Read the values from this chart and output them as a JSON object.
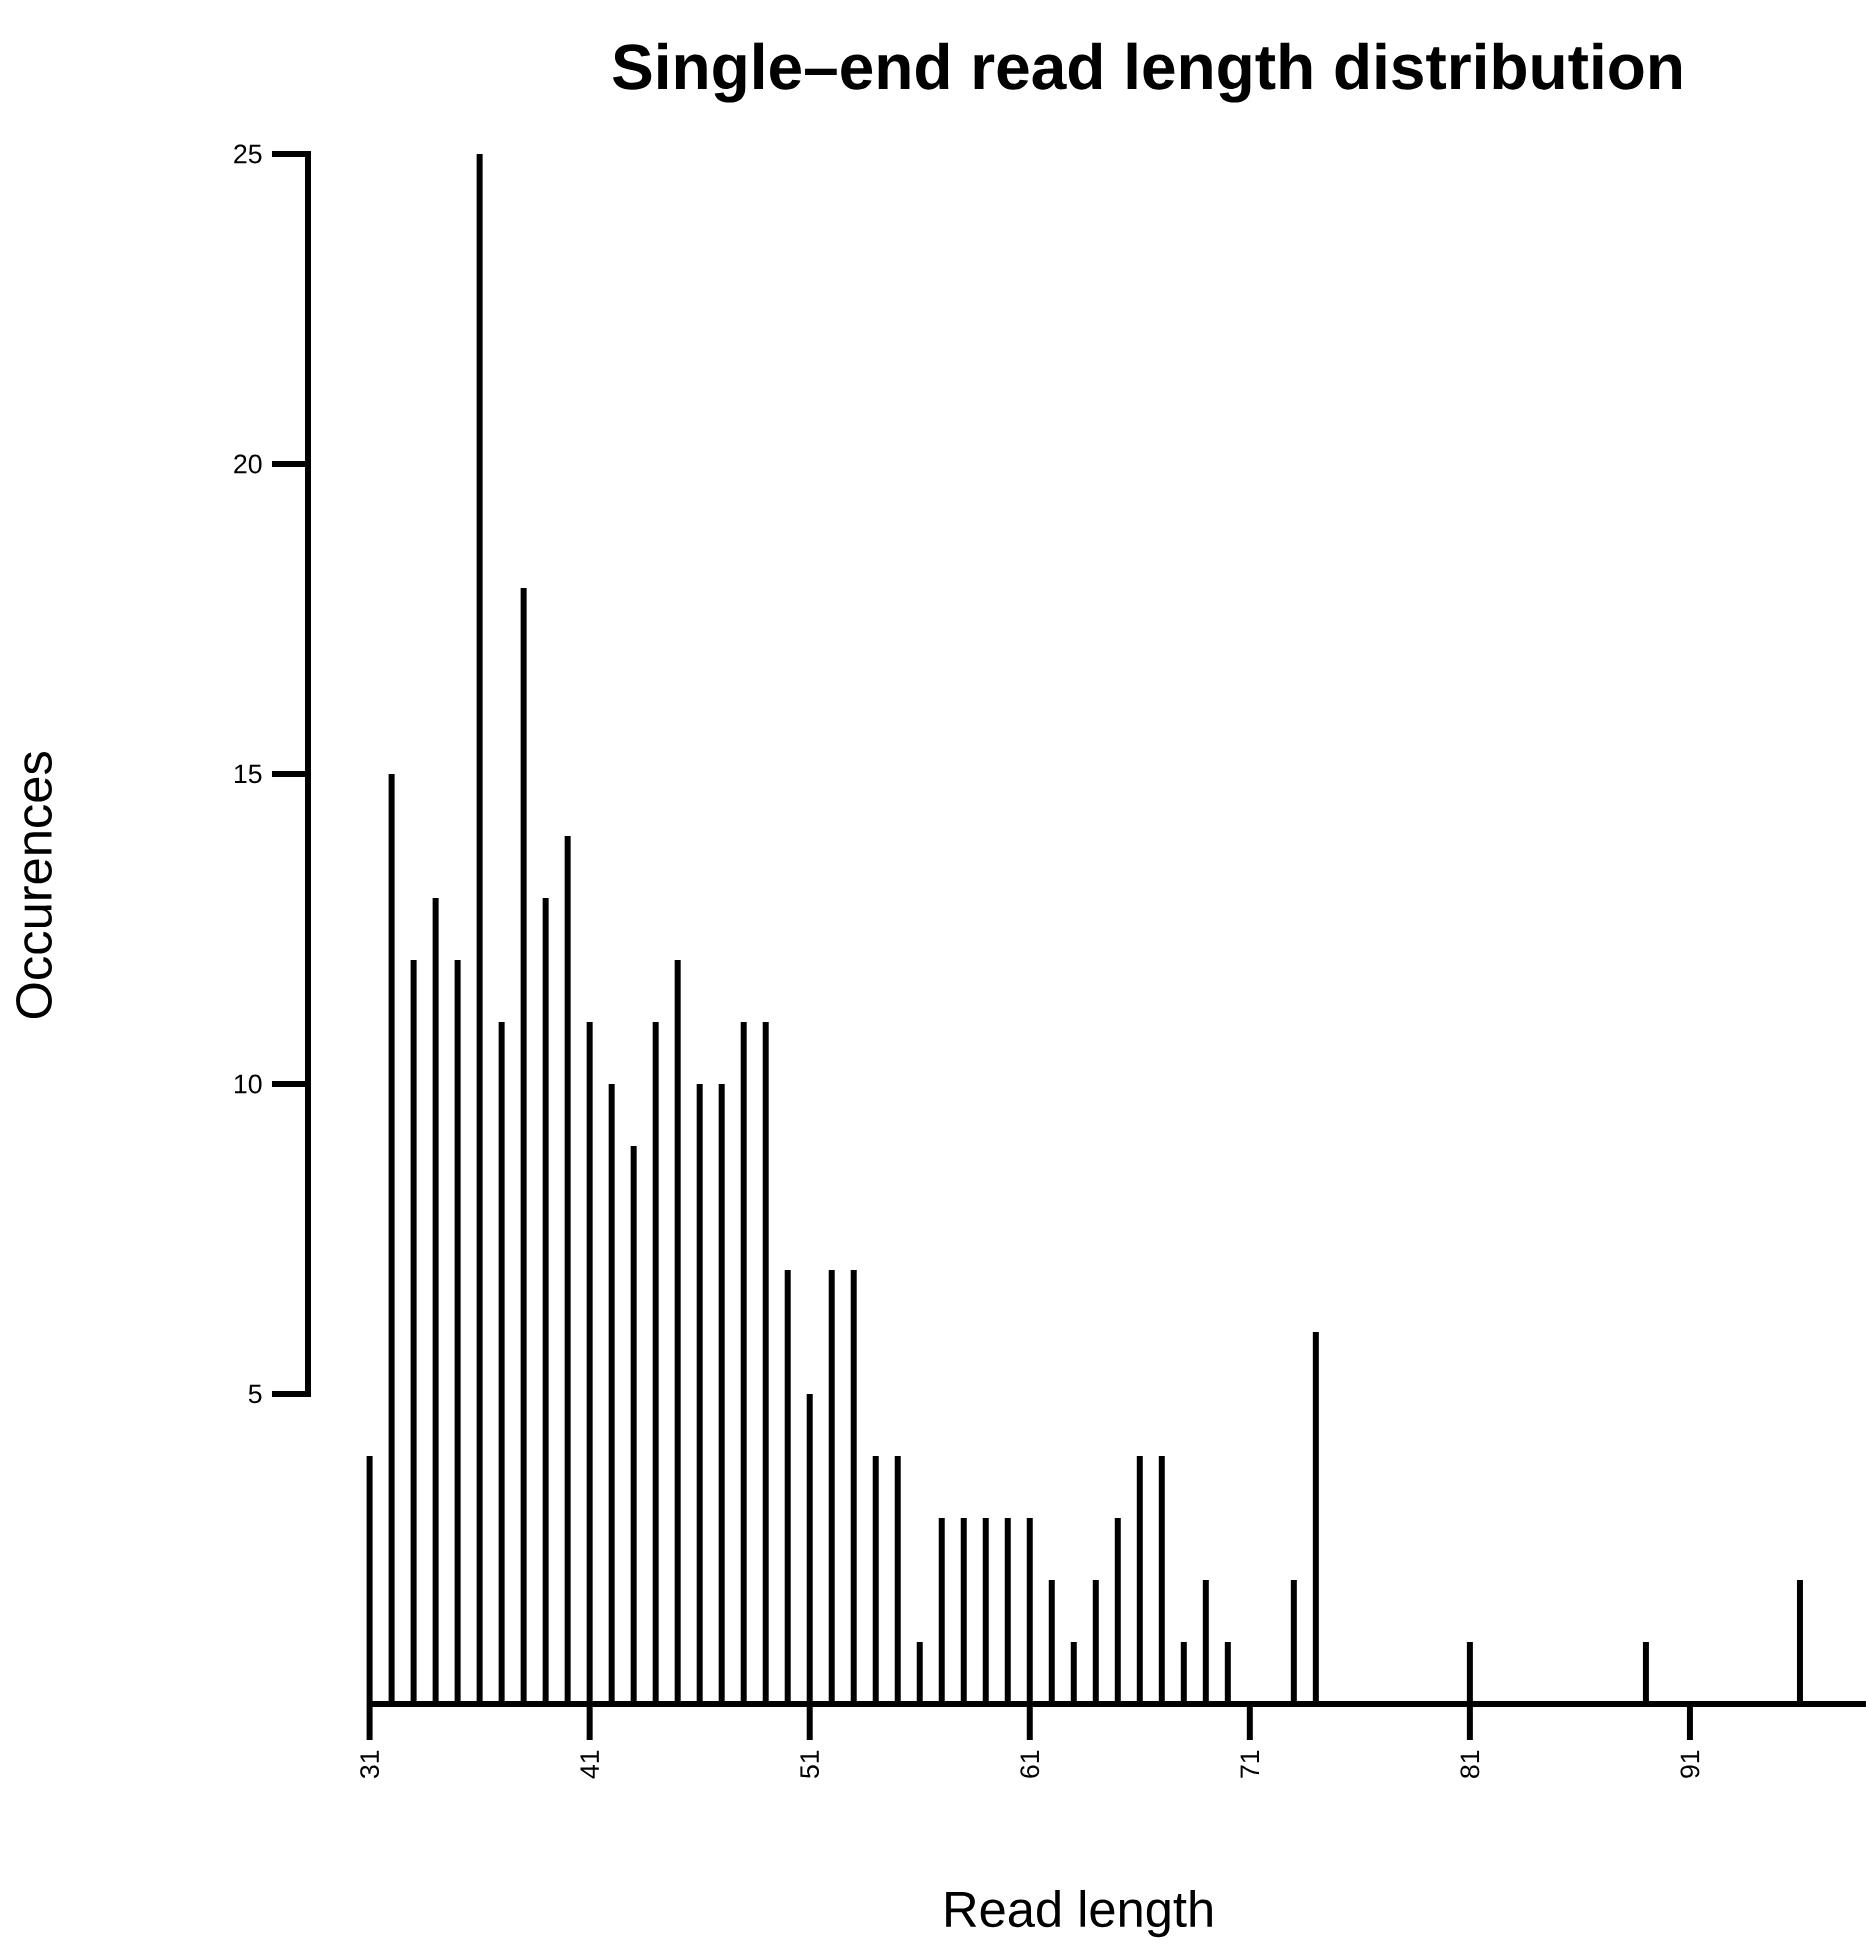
{
  "chart_data": {
    "type": "bar",
    "title": "Single–end read length distribution",
    "xlabel": "Read length",
    "ylabel": "Occurences",
    "color": "#000000",
    "x": [
      31,
      32,
      33,
      34,
      35,
      36,
      37,
      38,
      39,
      40,
      41,
      42,
      43,
      44,
      45,
      46,
      47,
      48,
      49,
      50,
      51,
      52,
      53,
      54,
      55,
      56,
      57,
      58,
      59,
      60,
      61,
      62,
      63,
      64,
      65,
      66,
      67,
      68,
      69,
      70,
      73,
      74,
      81,
      89,
      96
    ],
    "values": [
      4,
      15,
      12,
      13,
      12,
      25,
      11,
      18,
      13,
      14,
      11,
      10,
      9,
      11,
      12,
      10,
      10,
      11,
      11,
      7,
      5,
      7,
      7,
      4,
      4,
      1,
      3,
      3,
      3,
      3,
      3,
      2,
      1,
      2,
      3,
      4,
      4,
      1,
      2,
      1,
      2,
      6,
      1,
      1,
      2
    ],
    "xlim": [
      28.2,
      99
    ],
    "ylim": [
      0,
      25
    ],
    "xticks": [
      31,
      41,
      51,
      61,
      71,
      81,
      91
    ],
    "yticks": [
      5,
      10,
      15,
      20,
      25
    ]
  }
}
